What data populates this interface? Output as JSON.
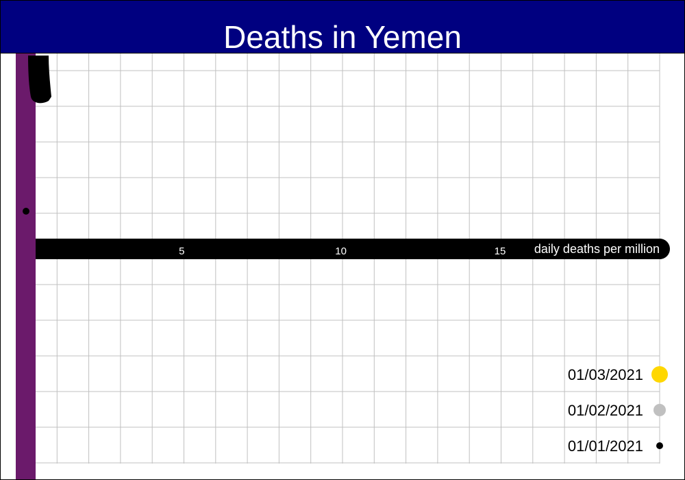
{
  "chart_data": {
    "type": "line",
    "title": "Deaths in Yemen",
    "xlabel": "daily deaths per million",
    "x_ticks": [
      5,
      10,
      15
    ],
    "xlim": [
      0,
      19.8
    ],
    "series_colors": {
      "axis_line": "#000000",
      "vertical_bar": "#6b1a6b"
    },
    "legend": [
      {
        "label": "01/03/2021",
        "color": "#ffd700",
        "marker_size": "large"
      },
      {
        "label": "01/02/2021",
        "color": "#c0c0c0",
        "marker_size": "medium"
      },
      {
        "label": "01/01/2021",
        "color": "#000000",
        "marker_size": "small"
      }
    ],
    "legend_position": "bottom-right",
    "grid": true
  },
  "colors": {
    "header_bg": "#000080",
    "header_text": "#ffffff",
    "grid": "#c0c0c0",
    "axis_text": "#ffffff"
  }
}
